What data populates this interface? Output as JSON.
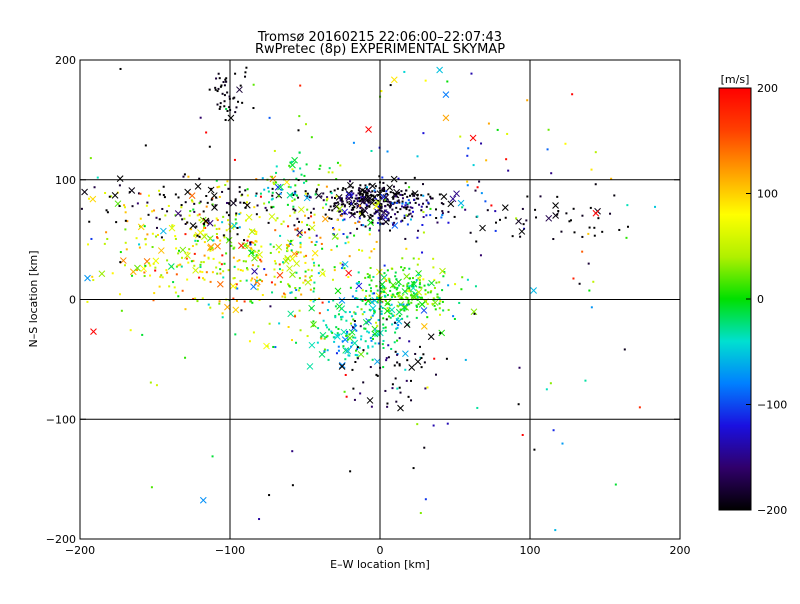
{
  "chart_data": {
    "type": "scatter",
    "title": "Tromsø 20160215 22:06:00–22:07:43",
    "subtitle": "RwPretec (8p) EXPERIMENTAL SKYMAP",
    "xlabel": "E–W location [km]",
    "ylabel": "N–S location [km]",
    "xlim": [
      -200,
      200
    ],
    "ylim": [
      -200,
      200
    ],
    "xticks": [
      "−200",
      "−100",
      "0",
      "100",
      "200"
    ],
    "yticks": [
      "−200",
      "−100",
      "0",
      "100",
      "200"
    ],
    "grid": true,
    "grid_lines_km": [
      -100,
      0,
      100
    ],
    "markers": [
      "small dot",
      "x"
    ],
    "colorbar": {
      "label": "[m/s]",
      "range": [
        -200,
        200
      ],
      "ticks": [
        "200",
        "100",
        "0",
        "−100",
        "−200"
      ],
      "colormap": [
        "#000000",
        "#30006a",
        "#1a10e0",
        "#0080ff",
        "#00e0d0",
        "#00e000",
        "#b0f000",
        "#ffff00",
        "#ffa000",
        "#ff4000",
        "#ff0000"
      ]
    },
    "clusters": [
      {
        "x": -5,
        "y": 82,
        "sx": 22,
        "sy": 8,
        "n": 260,
        "v": -200,
        "vs": 20
      },
      {
        "x": 10,
        "y": 75,
        "sx": 30,
        "sy": 10,
        "n": 110,
        "v": -140,
        "vs": 50
      },
      {
        "x": -110,
        "y": 40,
        "sx": 38,
        "sy": 25,
        "n": 330,
        "v": 70,
        "vs": 50
      },
      {
        "x": -55,
        "y": 30,
        "sx": 30,
        "sy": 30,
        "n": 160,
        "v": 50,
        "vs": 60
      },
      {
        "x": 15,
        "y": 5,
        "sx": 15,
        "sy": 12,
        "n": 230,
        "v": 10,
        "vs": 30
      },
      {
        "x": -15,
        "y": -25,
        "sx": 18,
        "sy": 15,
        "n": 180,
        "v": -30,
        "vs": 30
      },
      {
        "x": -105,
        "y": 78,
        "sx": 60,
        "sy": 12,
        "n": 130,
        "v": -200,
        "vs": 15
      },
      {
        "x": 110,
        "y": 67,
        "sx": 30,
        "sy": 10,
        "n": 45,
        "v": -200,
        "vs": 15
      },
      {
        "x": -100,
        "y": 175,
        "sx": 7,
        "sy": 10,
        "n": 45,
        "v": -200,
        "vs": 10
      },
      {
        "x": 10,
        "y": -60,
        "sx": 15,
        "sy": 25,
        "n": 60,
        "v": -190,
        "vs": 30
      },
      {
        "x": -60,
        "y": 95,
        "sx": 15,
        "sy": 10,
        "n": 60,
        "v": -5,
        "vs": 40
      },
      {
        "x": 0,
        "y": 60,
        "sx": 120,
        "sy": 110,
        "n": 260,
        "v": 0,
        "vs": 150
      }
    ]
  }
}
